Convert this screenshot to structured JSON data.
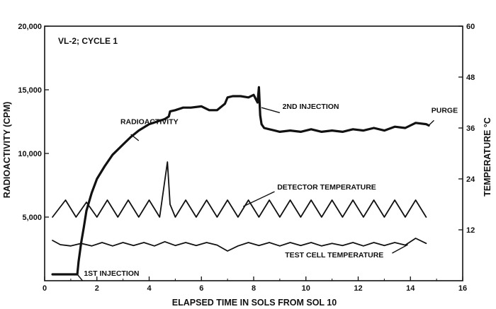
{
  "chart_data": {
    "type": "line",
    "title": "VL-2; CYCLE 1",
    "xlabel": "ELAPSED TIME IN SOLS FROM SOL 10",
    "ylabel_left": "RADIOACTIVITY (CPM)",
    "ylabel_right": "TEMPERATURE °C",
    "xlim": [
      0,
      16
    ],
    "ylim_left": [
      0,
      20000
    ],
    "ylim_right": [
      0,
      60
    ],
    "x_ticks": [
      0,
      2,
      4,
      6,
      8,
      10,
      12,
      14,
      16
    ],
    "x_tick_labels": [
      "0",
      "2",
      "4",
      "6",
      "8",
      "10",
      "12",
      "14",
      "16"
    ],
    "y_left_ticks": [
      5000,
      10000,
      15000,
      20000
    ],
    "y_left_tick_labels": [
      "5,000",
      "10,000",
      "15,000",
      "20,000"
    ],
    "y_right_ticks": [
      12,
      24,
      36,
      48,
      60
    ],
    "y_right_tick_labels": [
      "12",
      "24",
      "36",
      "48",
      "60"
    ],
    "grid": false,
    "series": [
      {
        "name": "RADIOACTIVITY",
        "axis": "left",
        "x": [
          0.3,
          0.8,
          1.2,
          1.25,
          1.3,
          1.4,
          1.5,
          1.6,
          1.8,
          2.0,
          2.3,
          2.6,
          3.0,
          3.3,
          3.6,
          4.0,
          4.3,
          4.6,
          4.75,
          4.8,
          5.0,
          5.3,
          5.6,
          6.0,
          6.3,
          6.6,
          6.9,
          7.0,
          7.2,
          7.5,
          7.8,
          8.0,
          8.15,
          8.2,
          8.25,
          8.3,
          8.4,
          8.6,
          8.8,
          9.0,
          9.4,
          9.8,
          10.2,
          10.6,
          11.0,
          11.4,
          11.8,
          12.2,
          12.6,
          13.0,
          13.4,
          13.8,
          14.2,
          14.6,
          14.7
        ],
        "y": [
          500,
          500,
          500,
          500,
          1500,
          3000,
          4200,
          5500,
          6900,
          8000,
          9000,
          9900,
          10700,
          11300,
          11800,
          12300,
          12500,
          12700,
          12900,
          13300,
          13400,
          13600,
          13600,
          13700,
          13400,
          13400,
          13900,
          14400,
          14500,
          14500,
          14400,
          14600,
          14000,
          15200,
          13000,
          12300,
          12000,
          11900,
          11800,
          11700,
          11800,
          11700,
          11900,
          11700,
          11800,
          11700,
          11900,
          11800,
          12000,
          11800,
          12100,
          12000,
          12400,
          12300,
          12200
        ]
      },
      {
        "name": "DETECTOR TEMPERATURE",
        "axis": "right",
        "x": [
          0.3,
          0.8,
          1.2,
          1.6,
          2.0,
          2.4,
          2.8,
          3.2,
          3.6,
          4.0,
          4.4,
          4.7,
          4.8,
          5.0,
          5.4,
          5.8,
          6.2,
          6.6,
          7.0,
          7.4,
          7.8,
          8.2,
          8.6,
          9.0,
          9.4,
          9.8,
          10.2,
          10.6,
          11.0,
          11.4,
          11.8,
          12.2,
          12.6,
          13.0,
          13.4,
          13.8,
          14.2,
          14.6
        ],
        "y": [
          15,
          19,
          15,
          18.5,
          15,
          19,
          15,
          19,
          15,
          19,
          15,
          28,
          18,
          15,
          19,
          15,
          19,
          15,
          19,
          15,
          19,
          15,
          19,
          15,
          19,
          15,
          19,
          15,
          19,
          15,
          19,
          15,
          19,
          15,
          19,
          15,
          19,
          15
        ]
      },
      {
        "name": "TEST CELL TEMPERATURE",
        "axis": "right",
        "x": [
          0.3,
          0.6,
          1.0,
          1.4,
          1.8,
          2.2,
          2.6,
          3.0,
          3.4,
          3.8,
          4.2,
          4.6,
          5.0,
          5.4,
          5.8,
          6.2,
          6.6,
          7.0,
          7.4,
          7.8,
          8.2,
          8.6,
          9.0,
          9.4,
          9.8,
          10.2,
          10.6,
          11.0,
          11.4,
          11.8,
          12.2,
          12.6,
          13.0,
          13.4,
          13.8,
          14.2,
          14.6
        ],
        "y": [
          9.5,
          8.5,
          8.2,
          8.8,
          8.2,
          9.0,
          8.2,
          9.0,
          8.3,
          9.0,
          8.2,
          9.2,
          8.3,
          9.0,
          8.3,
          9.0,
          8.4,
          7.0,
          8.2,
          9.0,
          8.3,
          9.0,
          8.2,
          9.0,
          8.3,
          9.0,
          8.2,
          8.8,
          8.3,
          9.0,
          8.2,
          9.0,
          8.3,
          9.0,
          8.4,
          10.0,
          8.8
        ]
      }
    ],
    "annotations": [
      {
        "text": "RADIOACTIVITY",
        "x": 2.9,
        "y": 12300,
        "axis": "left"
      },
      {
        "text": "2ND INJECTION",
        "x": 9.1,
        "y": 13500,
        "axis": "left"
      },
      {
        "text": "PURGE",
        "x": 14.8,
        "y": 13200,
        "axis": "left"
      },
      {
        "text": "DETECTOR TEMPERATURE",
        "x": 8.9,
        "y": 21.5,
        "axis": "right"
      },
      {
        "text": "TEST CELL TEMPERATURE",
        "x": 9.2,
        "y": 5.5,
        "axis": "right"
      },
      {
        "text": "1ST INJECTION",
        "x": 1.5,
        "y": 400,
        "axis": "left"
      }
    ]
  }
}
